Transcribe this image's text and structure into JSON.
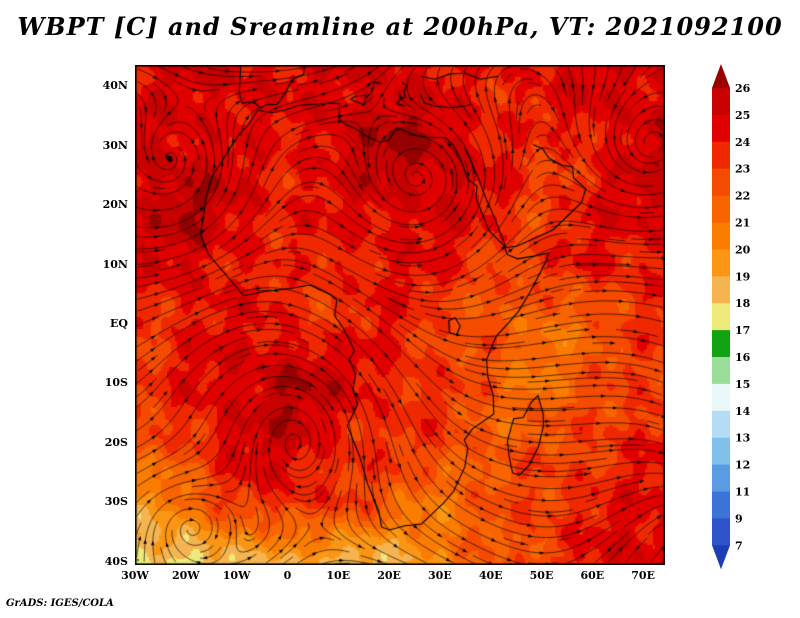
{
  "title": "WBPT [C] and Sreamline at 200hPa, VT: 2021092100",
  "credit": "GrADS: IGES/COLA",
  "axes": {
    "y_labels": [
      "40N",
      "30N",
      "20N",
      "10N",
      "EQ",
      "10S",
      "20S",
      "30S",
      "40S"
    ],
    "y_ticks_deg": [
      40,
      30,
      20,
      10,
      0,
      -10,
      -20,
      -30,
      -40
    ],
    "x_labels": [
      "30W",
      "20W",
      "10W",
      "0",
      "10E",
      "20E",
      "30E",
      "40E",
      "50E",
      "60E",
      "70E"
    ],
    "x_ticks_deg": [
      -30,
      -20,
      -10,
      0,
      10,
      20,
      30,
      40,
      50,
      60,
      70
    ]
  },
  "colorbar": {
    "tick_labels": [
      "26",
      "25",
      "24",
      "23",
      "22",
      "21",
      "20",
      "19",
      "18",
      "17",
      "16",
      "15",
      "14",
      "13",
      "12",
      "11",
      "9",
      "7"
    ],
    "colors_top_to_bottom": [
      "#960000",
      "#c80000",
      "#e10000",
      "#f02800",
      "#f54b00",
      "#f86400",
      "#fa7d00",
      "#fb9614",
      "#f5b450",
      "#efe97c",
      "#12a312",
      "#9ade9a",
      "#e8f8f8",
      "#b4dcf5",
      "#82c0ec",
      "#5a9be1",
      "#3c73d7",
      "#2d54c8",
      "#1e3cb4"
    ]
  },
  "chart_data": {
    "type": "heatmap",
    "variable": "WBPT [C]",
    "level": "200hPa",
    "valid_time": "2021092100",
    "overlay": "streamlines",
    "lon_range": [
      -30,
      74.3
    ],
    "lat_range": [
      -40.7,
      43.4
    ],
    "contour_levels": [
      7,
      9,
      11,
      12,
      13,
      14,
      15,
      16,
      17,
      18,
      19,
      20,
      21,
      22,
      23,
      24,
      25,
      26
    ],
    "grid_lats": [
      40,
      30,
      20,
      10,
      0,
      -10,
      -20,
      -30,
      -40
    ],
    "grid_lons": [
      -30,
      -20,
      -10,
      0,
      10,
      20,
      30,
      40,
      50,
      60,
      70
    ],
    "wbpt_grid": [
      [
        24,
        25,
        25,
        24,
        25,
        25,
        24,
        24,
        24,
        25,
        25
      ],
      [
        25,
        25,
        24,
        24,
        25,
        26,
        26,
        24,
        23,
        24,
        25
      ],
      [
        25,
        26,
        25,
        24,
        24,
        25,
        25,
        24,
        23,
        24,
        25
      ],
      [
        24,
        25,
        24,
        23,
        24,
        24,
        24,
        23,
        23,
        24,
        24
      ],
      [
        23,
        24,
        24,
        24,
        23,
        24,
        23,
        22,
        21,
        22,
        23
      ],
      [
        23,
        24,
        25,
        26,
        25,
        24,
        23,
        22,
        21,
        22,
        23
      ],
      [
        22,
        23,
        25,
        25,
        24,
        23,
        23,
        22,
        22,
        23,
        24
      ],
      [
        20,
        21,
        23,
        24,
        23,
        22,
        21,
        22,
        23,
        24,
        24
      ],
      [
        18,
        17,
        19,
        19,
        18,
        19,
        20,
        22,
        23,
        24,
        25
      ]
    ],
    "cyclone_centers": [
      {
        "lon": -23,
        "lat": 23,
        "spin": 1
      },
      {
        "lon": 28,
        "lat": 23,
        "spin": 1
      },
      {
        "lon": 2.5,
        "lat": -16,
        "spin": -1
      },
      {
        "lon": -21,
        "lat": -33,
        "spin": -1
      },
      {
        "lon": 71,
        "lat": 27,
        "spin": 1
      }
    ]
  }
}
